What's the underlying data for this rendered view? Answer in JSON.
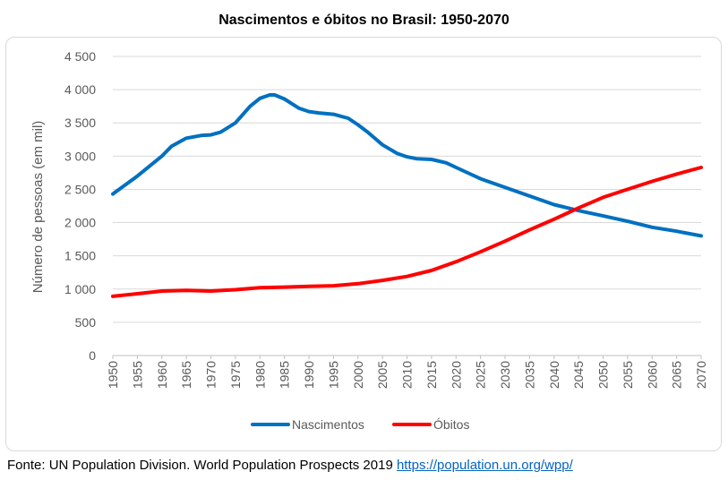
{
  "chart_data": {
    "type": "line",
    "title": "Nascimentos e óbitos no Brasil: 1950-2070",
    "xlabel": "",
    "ylabel": "Número de pessoas (em mil)",
    "xlim": [
      1950,
      2070
    ],
    "ylim": [
      0,
      4500
    ],
    "x_ticks": [
      "1950",
      "1955",
      "1960",
      "1965",
      "1970",
      "1975",
      "1980",
      "1985",
      "1990",
      "1995",
      "2000",
      "2005",
      "2010",
      "2015",
      "2020",
      "2025",
      "2030",
      "2035",
      "2040",
      "2045",
      "2050",
      "2055",
      "2060",
      "2065",
      "2070"
    ],
    "y_ticks": [
      "0",
      "500",
      "1 000",
      "1 500",
      "2 000",
      "2 500",
      "3 000",
      "3 500",
      "4 000",
      "4 500"
    ],
    "grid": "horizontal",
    "legend_position": "bottom",
    "series": [
      {
        "name": "Nascimentos",
        "color": "#0070c0",
        "x": [
          1950,
          1955,
          1960,
          1962,
          1965,
          1968,
          1970,
          1972,
          1975,
          1978,
          1980,
          1982,
          1983,
          1985,
          1988,
          1990,
          1992,
          1995,
          1998,
          2000,
          2002,
          2005,
          2008,
          2010,
          2012,
          2015,
          2018,
          2020,
          2025,
          2030,
          2035,
          2040,
          2045,
          2050,
          2055,
          2060,
          2065,
          2070
        ],
        "y": [
          2430,
          2700,
          3000,
          3150,
          3270,
          3310,
          3320,
          3360,
          3500,
          3750,
          3870,
          3920,
          3920,
          3860,
          3720,
          3670,
          3650,
          3630,
          3570,
          3470,
          3360,
          3170,
          3040,
          2990,
          2960,
          2950,
          2900,
          2830,
          2660,
          2530,
          2400,
          2270,
          2180,
          2100,
          2020,
          1930,
          1870,
          1800
        ]
      },
      {
        "name": "Óbitos",
        "color": "#ff0000",
        "x": [
          1950,
          1955,
          1960,
          1965,
          1970,
          1975,
          1980,
          1985,
          1990,
          1995,
          2000,
          2005,
          2010,
          2015,
          2020,
          2025,
          2030,
          2035,
          2040,
          2045,
          2050,
          2055,
          2060,
          2065,
          2070
        ],
        "y": [
          890,
          930,
          970,
          980,
          970,
          990,
          1020,
          1030,
          1040,
          1050,
          1080,
          1130,
          1190,
          1280,
          1410,
          1560,
          1720,
          1890,
          2050,
          2220,
          2380,
          2500,
          2620,
          2730,
          2830
        ]
      }
    ]
  },
  "footer": {
    "source_text": "Fonte: UN Population Division. World Population Prospects 2019 ",
    "source_link": "https://population.un.org/wpp/"
  }
}
